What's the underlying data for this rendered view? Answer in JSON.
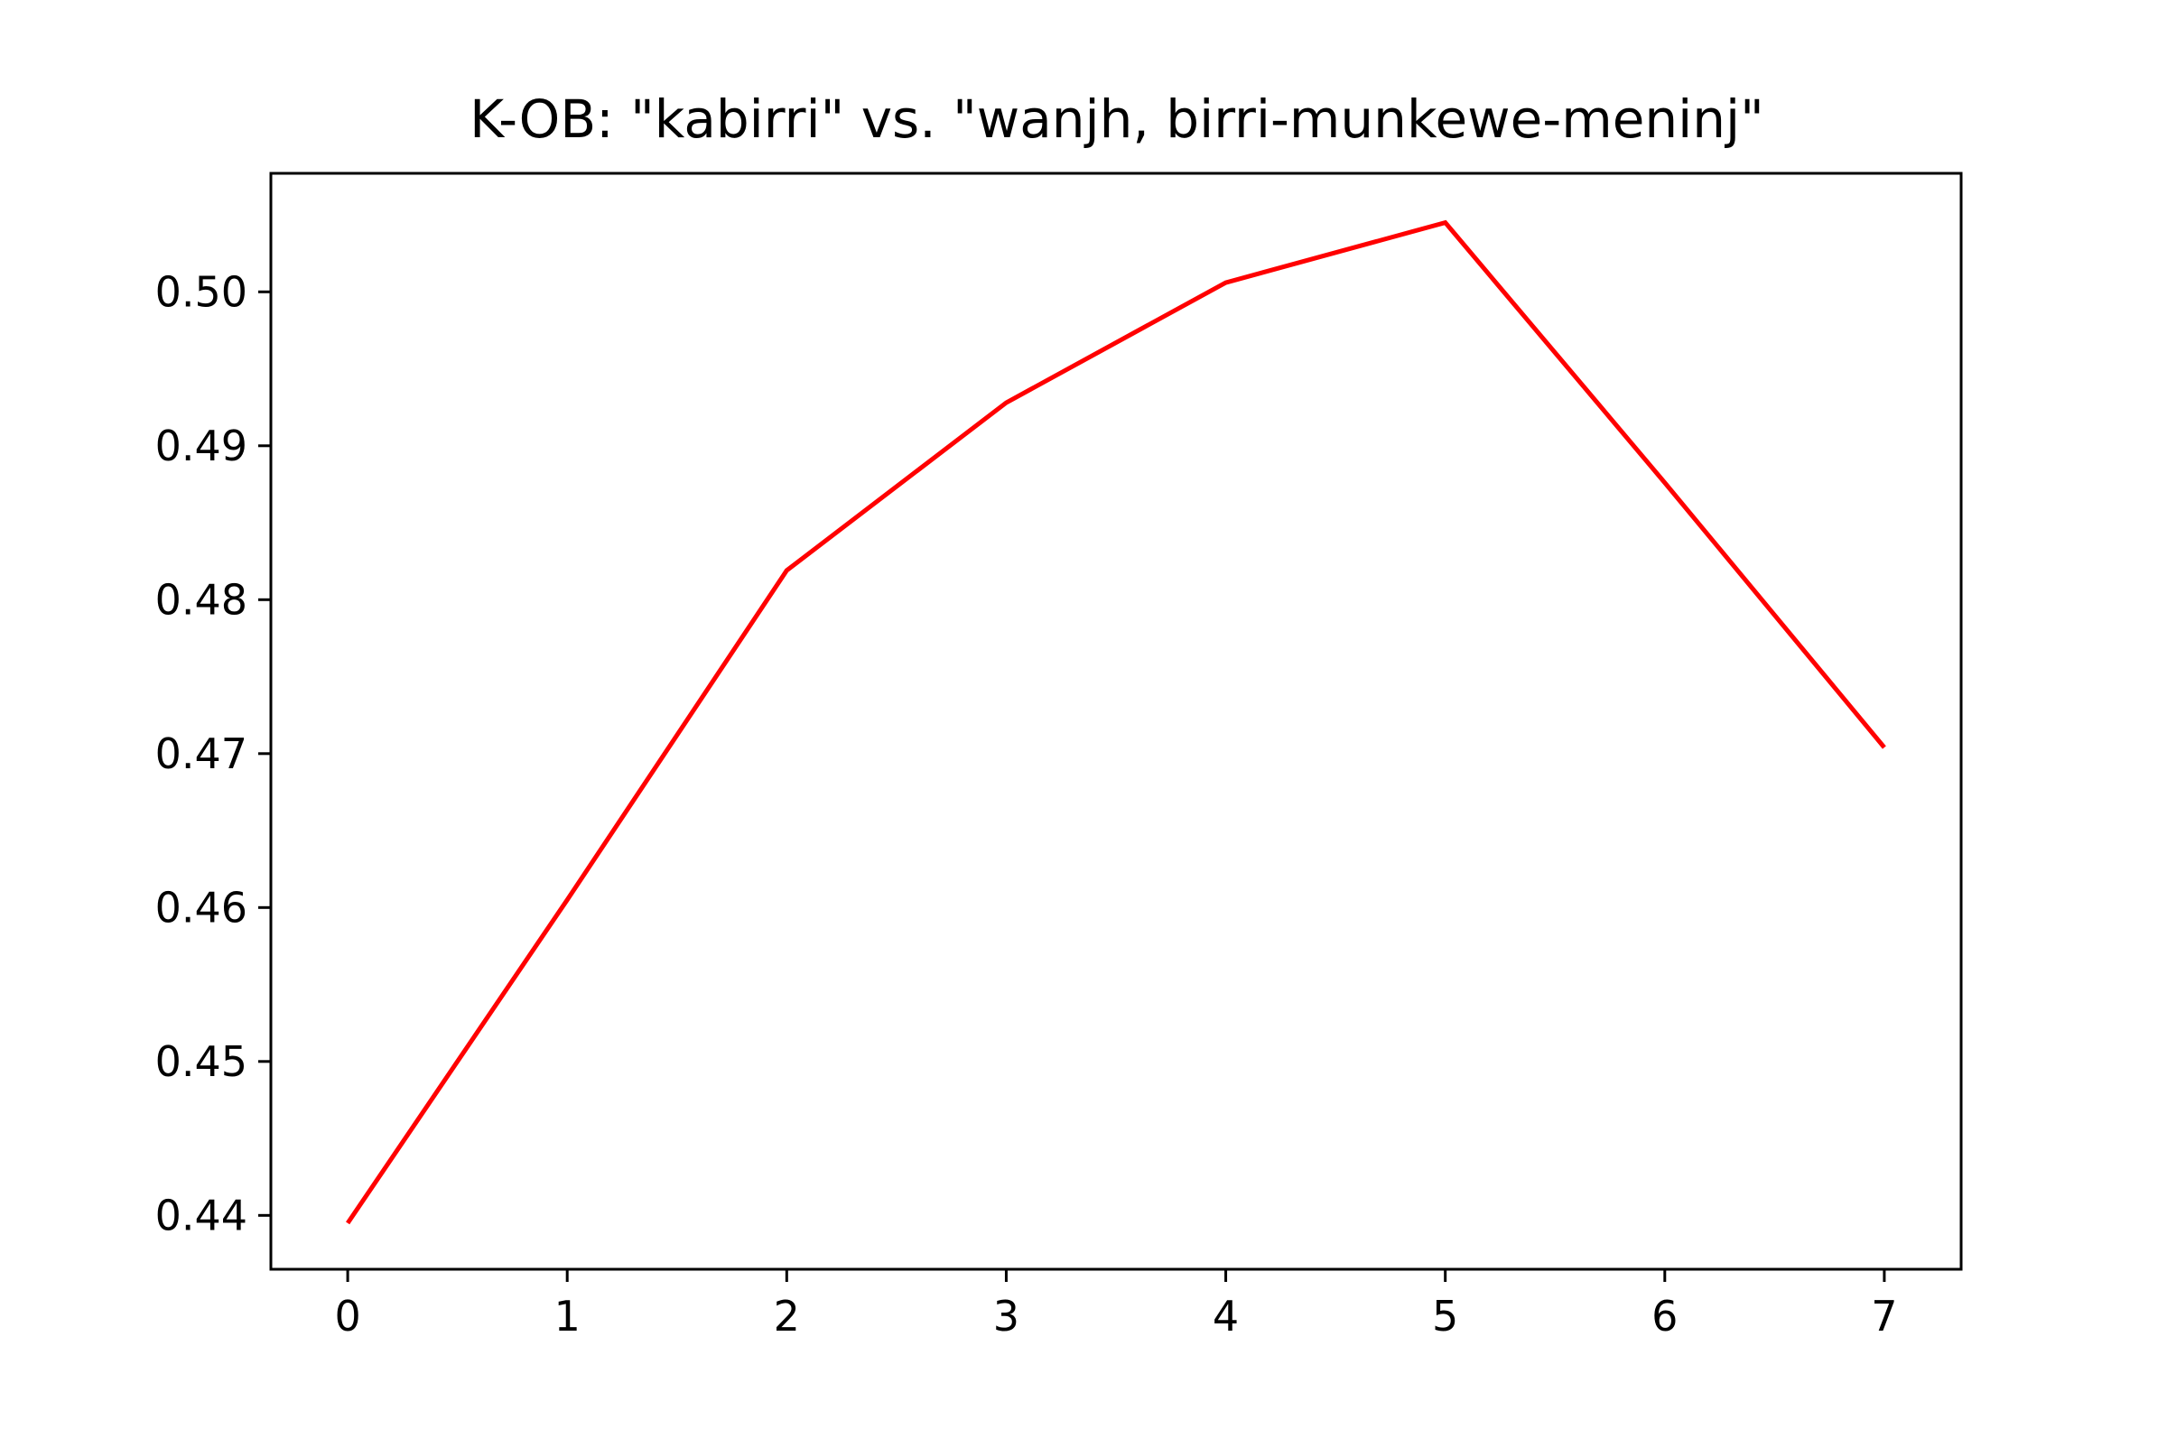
{
  "chart_data": {
    "type": "line",
    "title": "K-OB: \"kabirri\" vs. \"wanjh, birri-munkewe-meninj\"",
    "xlabel": "",
    "ylabel": "",
    "x": [
      0,
      1,
      2,
      3,
      4,
      5,
      6,
      7
    ],
    "series": [
      {
        "values": [
          0.4395,
          0.4605,
          0.4819,
          0.4928,
          0.5006,
          0.5045,
          0.4876,
          0.4704
        ],
        "color": "#ff0000"
      }
    ],
    "xlim": [
      -0.35,
      7.35
    ],
    "ylim": [
      0.4365,
      0.5077
    ],
    "x_ticks": [
      "0",
      "1",
      "2",
      "3",
      "4",
      "5",
      "6",
      "7"
    ],
    "y_ticks": [
      "0.44",
      "0.45",
      "0.46",
      "0.47",
      "0.48",
      "0.49",
      "0.50"
    ],
    "grid": false,
    "legend": "none"
  }
}
